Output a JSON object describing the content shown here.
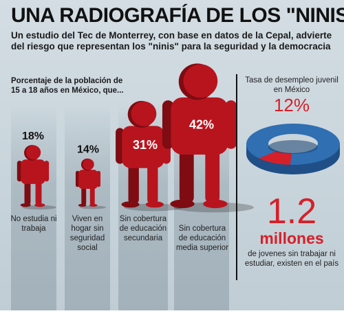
{
  "title": "UNA RADIOGRAFÍA DE LOS \"NINIS\"",
  "subtitle": "Un estudio del Tec de Monterrey, con base en datos de la Cepal, advierte del riesgo que representan los \"ninis\" para la seguridad y la democracia",
  "side_heading": "Porcentaje de la población de 15 a 18 años en México, que...",
  "chart_data": [
    {
      "type": "bar",
      "categories": [
        "No estudia ni trabaja",
        "Viven en hogar sin seguridad social",
        "Sin cobertura de educación secundaria",
        "Sin cobertura de educación media superior"
      ],
      "values": [
        18,
        14,
        31,
        42
      ],
      "value_labels": [
        "18%",
        "14%",
        "31%",
        "42%"
      ],
      "unit": "%",
      "marks": "human figures scaled by value",
      "colors": {
        "figure": "#b8141e"
      }
    },
    {
      "type": "pie",
      "title": "Tasa de desempleo juvenil en México",
      "value_label": "12%",
      "slices": [
        {
          "value": 12,
          "color": "#d5202a"
        },
        {
          "value": 88,
          "color": "#2f6fb2"
        }
      ]
    }
  ],
  "stat": {
    "number": "1.2",
    "unit": "millones",
    "description": "de jovenes sin trabajar ni estudiar, existen en el país"
  }
}
